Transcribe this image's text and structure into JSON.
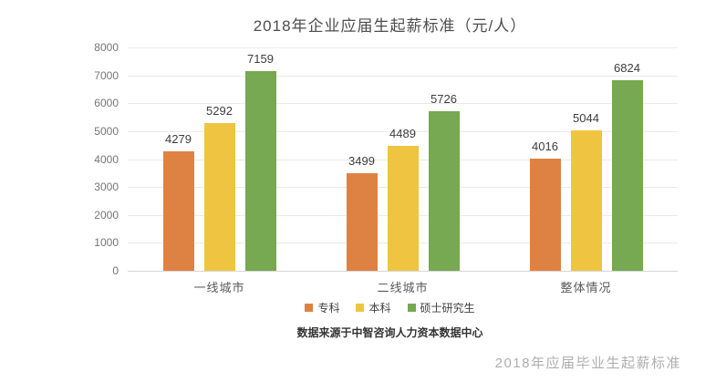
{
  "title": "2018年企业应届生起薪标准（元/人）",
  "source_note": "数据来源于中智咨询人力资本数据中心",
  "bottom_caption": "2018年应届毕业生起薪标准",
  "colors": {
    "junior_college": "#de8244",
    "bachelor": "#efc440",
    "master": "#77a852",
    "gridline": "#eaeaea",
    "axis_text": "#757575"
  },
  "chart_data": {
    "type": "bar",
    "title": "2018年企业应届生起薪标准（元/人）",
    "categories": [
      "一线城市",
      "二线城市",
      "整体情况"
    ],
    "series": [
      {
        "name": "专科",
        "color": "#de8244",
        "values": [
          4279,
          3499,
          4016
        ]
      },
      {
        "name": "本科",
        "color": "#efc440",
        "values": [
          5292,
          4489,
          5044
        ]
      },
      {
        "name": "硕士研究生",
        "color": "#77a852",
        "values": [
          7159,
          5726,
          6824
        ]
      }
    ],
    "xlabel": "",
    "ylabel": "",
    "ylim": [
      0,
      8000
    ],
    "ytick_step": 1000,
    "yticks": [
      0,
      1000,
      2000,
      3000,
      4000,
      5000,
      6000,
      7000,
      8000
    ],
    "grid": true,
    "legend_position": "bottom",
    "data_labels": true
  }
}
